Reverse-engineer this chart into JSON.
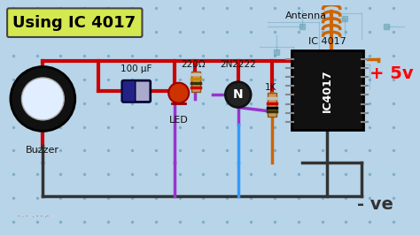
{
  "bg_color": "#b8d4e8",
  "title": "Using IC 4017",
  "title_bg": "#d4e850",
  "title_color": "#000000",
  "plus5v_color": "#ff0000",
  "minus_ve_color": "#333333",
  "wire_red": "#cc0000",
  "wire_dark": "#333333",
  "wire_purple": "#9933cc",
  "wire_blue": "#3399ff",
  "wire_orange": "#cc6600",
  "antenna_color": "#cc6600",
  "ic_color": "#111111",
  "cap_color": "#222288",
  "led_color": "#cc3300",
  "transistor_bg": "#333333",
  "resistor_color": "#cc8844",
  "resistor1K_color": "#cc8844",
  "buzzer_outer": "#111111",
  "buzzer_inner": "#e8f4ff",
  "labels": {
    "title": "Using IC 4017",
    "buzzer": "Buzzer",
    "cap": "100 μF",
    "res220": "220Ω",
    "led": "LED",
    "transistor": "2N2222",
    "res1k": "1K",
    "ic": "IC 4017",
    "antenna": "Antenna",
    "plus5v": "+ 5v",
    "minusve": "- ve"
  }
}
